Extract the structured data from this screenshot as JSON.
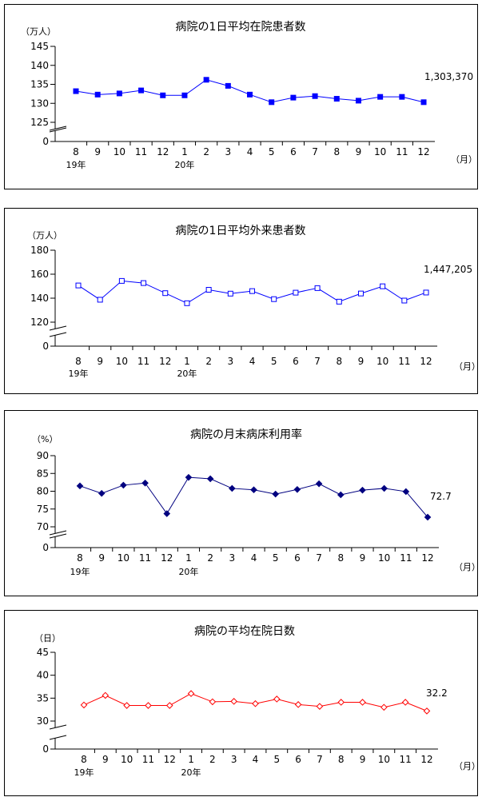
{
  "chart_data": [
    {
      "type": "line",
      "title": "病院の1日平均在院患者数",
      "ylabel": "（万人）",
      "xunit": "（月）",
      "categories": [
        "8",
        "9",
        "10",
        "11",
        "12",
        "1",
        "2",
        "3",
        "4",
        "5",
        "6",
        "7",
        "8",
        "9",
        "10",
        "11",
        "12"
      ],
      "year_labels": [
        {
          "index": 0,
          "text": "19年"
        },
        {
          "index": 5,
          "text": "20年"
        }
      ],
      "yticks": [
        "0",
        "125",
        "130",
        "135",
        "140",
        "145"
      ],
      "ylim": [
        125,
        145
      ],
      "axis_break": true,
      "series": [
        {
          "marker": "filled-square",
          "color": "#0000ff",
          "values": [
            133.2,
            132.3,
            132.6,
            133.4,
            132.1,
            132.1,
            136.2,
            134.6,
            132.3,
            130.3,
            131.5,
            131.9,
            131.2,
            130.7,
            131.7,
            131.7,
            130.3
          ]
        }
      ],
      "last_label": "1,303,370"
    },
    {
      "type": "line",
      "title": "病院の1日平均外来患者数",
      "ylabel": "（万人）",
      "xunit": "（月）",
      "categories": [
        "8",
        "9",
        "10",
        "11",
        "12",
        "1",
        "2",
        "3",
        "4",
        "5",
        "6",
        "7",
        "8",
        "9",
        "10",
        "11",
        "12"
      ],
      "year_labels": [
        {
          "index": 0,
          "text": "19年"
        },
        {
          "index": 5,
          "text": "20年"
        }
      ],
      "yticks": [
        "0",
        "120",
        "140",
        "160",
        "180"
      ],
      "ylim": [
        120,
        180
      ],
      "axis_break": true,
      "series": [
        {
          "marker": "open-square",
          "color": "#0000ff",
          "values": [
            150.6,
            138.7,
            154.4,
            152.6,
            144.2,
            135.8,
            147.0,
            143.8,
            145.9,
            139.2,
            144.6,
            148.4,
            137.1,
            143.9,
            149.9,
            138.0,
            144.7
          ]
        }
      ],
      "last_label": "1,447,205"
    },
    {
      "type": "line",
      "title": "病院の月末病床利用率",
      "ylabel": "（%）",
      "xunit": "（月）",
      "categories": [
        "8",
        "9",
        "10",
        "11",
        "12",
        "1",
        "2",
        "3",
        "4",
        "5",
        "6",
        "7",
        "8",
        "9",
        "10",
        "11",
        "12"
      ],
      "year_labels": [
        {
          "index": 0,
          "text": "19年"
        },
        {
          "index": 5,
          "text": "20年"
        }
      ],
      "yticks": [
        "0",
        "70",
        "75",
        "80",
        "85",
        "90"
      ],
      "ylim": [
        70,
        90
      ],
      "axis_break": true,
      "series": [
        {
          "marker": "filled-diamond",
          "color": "#000080",
          "values": [
            81.5,
            79.4,
            81.7,
            82.3,
            73.7,
            83.9,
            83.5,
            80.8,
            80.4,
            79.2,
            80.5,
            82.1,
            79.0,
            80.3,
            80.8,
            79.9,
            72.7
          ]
        }
      ],
      "last_label": "72.7"
    },
    {
      "type": "line",
      "title": "病院の平均在院日数",
      "ylabel": "（日）",
      "xunit": "（月）",
      "categories": [
        "8",
        "9",
        "10",
        "11",
        "12",
        "1",
        "2",
        "3",
        "4",
        "5",
        "6",
        "7",
        "8",
        "9",
        "10",
        "11",
        "12"
      ],
      "year_labels": [
        {
          "index": 0,
          "text": "19年"
        },
        {
          "index": 5,
          "text": "20年"
        }
      ],
      "yticks": [
        "0",
        "30",
        "35",
        "40",
        "45"
      ],
      "ylim": [
        30,
        45
      ],
      "axis_break": true,
      "series": [
        {
          "marker": "open-diamond",
          "color": "#ff0000",
          "values": [
            33.5,
            35.6,
            33.4,
            33.4,
            33.4,
            36.0,
            34.2,
            34.3,
            33.8,
            34.8,
            33.6,
            33.2,
            34.1,
            34.1,
            33.0,
            34.1,
            32.2
          ]
        }
      ],
      "last_label": "32.2"
    }
  ]
}
